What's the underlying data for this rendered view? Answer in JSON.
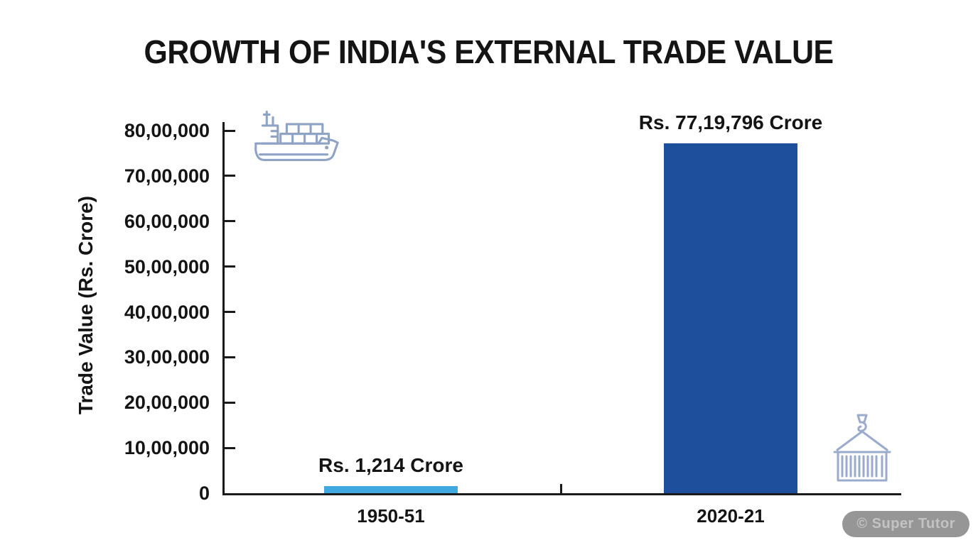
{
  "title": "GROWTH OF INDIA'S EXTERNAL TRADE VALUE",
  "watermark": "© Super Tutor",
  "icons": {
    "top_left_of_plot": "cargo-ship-icon",
    "bottom_right_of_plot": "crane-container-icon"
  },
  "colors": {
    "bar_1950_51": "#41a8e0",
    "bar_2020_21": "#1d4f9c",
    "axis": "#1a1a1a",
    "icon_stroke": "#8fa3c7",
    "watermark_bg": "#969696",
    "watermark_text": "#c3c3c3"
  },
  "chart_data": {
    "type": "bar",
    "title": "GROWTH OF INDIA'S EXTERNAL TRADE VALUE",
    "categories": [
      "1950-51",
      "2020-21"
    ],
    "values": [
      1214,
      7719796
    ],
    "bar_labels": [
      "Rs. 1,214 Crore",
      "Rs. 77,19,796 Crore"
    ],
    "bar_colors": [
      "#41a8e0",
      "#1d4f9c"
    ],
    "xlabel": "",
    "ylabel": "Trade Value (Rs. Crore)",
    "ylim": [
      0,
      8000000
    ],
    "ytick_values": [
      0,
      1000000,
      2000000,
      3000000,
      4000000,
      5000000,
      6000000,
      7000000,
      8000000
    ],
    "ytick_labels": [
      "0",
      "10,00,000",
      "20,00,000",
      "30,00,000",
      "40,00,000",
      "50,00,000",
      "60,00,000",
      "70,00,000",
      "80,00,000"
    ],
    "grid": false,
    "legend": "none"
  }
}
